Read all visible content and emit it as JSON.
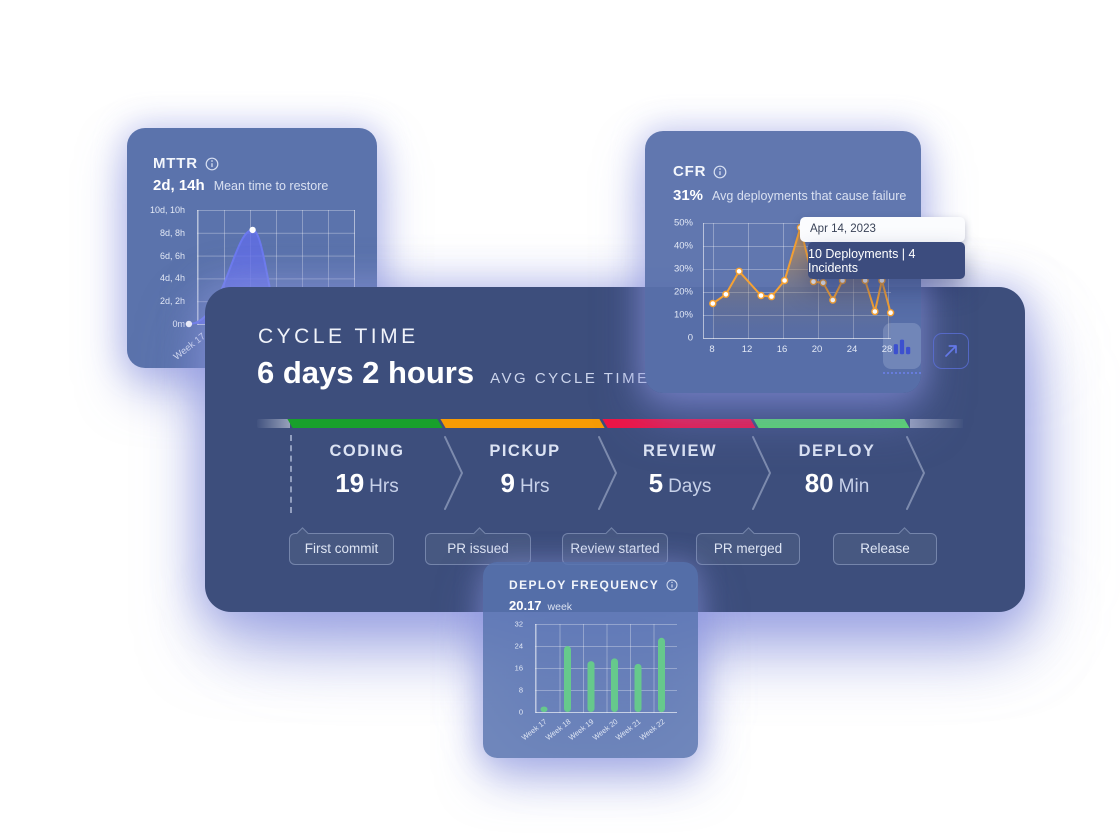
{
  "colors": {
    "card_light_bg": "#5b73ac",
    "cycle_card_bg": "#3d4e7c",
    "accent_orange": "#f6a233",
    "accent_periwinkle": "#6b79ef",
    "area_periwinkle_fill": "rgba(97,110,231,0.8)",
    "bar_green": "#66c98c",
    "segment_green": "#18a02b",
    "segment_orange": "#f79b04",
    "segment_red": "#ee1446",
    "segment_light_green": "#58d969",
    "glow": "#8d97e2"
  },
  "mttr_card": {
    "title": "MTTR",
    "value": "2d, 14h",
    "description": "Mean time to restore",
    "chart_data": {
      "type": "area",
      "y_tick_labels": [
        "10d, 10h",
        "8d, 8h",
        "6d, 6h",
        "4d, 4h",
        "2d, 2h",
        "0m"
      ],
      "x_tick_labels": [
        "Week 17"
      ],
      "ylim_days": [
        0,
        10.42
      ],
      "xlim_weeks": [
        0,
        6
      ],
      "curve_points_week_days": [
        [
          -0.35,
          0
        ],
        [
          2.1,
          8.6
        ],
        [
          3.3,
          0
        ],
        [
          6,
          0
        ]
      ],
      "dot_points": [
        [
          -0.35,
          0
        ],
        [
          2.1,
          8.6
        ]
      ]
    }
  },
  "cfr_card": {
    "title": "CFR",
    "value": "31%",
    "description": "Avg deployments that cause failure",
    "tooltip": {
      "date": "Apr 14, 2023",
      "text": "10 Deployments | 4 Incidents"
    },
    "chart_data": {
      "type": "line",
      "y_tick_labels": [
        "50%",
        "40%",
        "30%",
        "20%",
        "10%",
        "0"
      ],
      "x_tick_labels": [
        "8",
        "12",
        "16",
        "20",
        "24",
        "28"
      ],
      "ylim_percent": [
        0,
        50
      ],
      "xlim": [
        7,
        28.34
      ],
      "points": [
        [
          8,
          15
        ],
        [
          9.5,
          19
        ],
        [
          11,
          29
        ],
        [
          13.5,
          18.5
        ],
        [
          14.7,
          18
        ],
        [
          16.2,
          25
        ],
        [
          18,
          48
        ],
        [
          19.5,
          24.5
        ],
        [
          20.6,
          24
        ],
        [
          21.7,
          16.5
        ],
        [
          22.8,
          25
        ],
        [
          24.3,
          29
        ],
        [
          25.4,
          25
        ],
        [
          26.5,
          11.5
        ],
        [
          27.3,
          25
        ],
        [
          28.3,
          11
        ]
      ]
    }
  },
  "cycle_card": {
    "title": "CYCLE TIME",
    "value": "6 days 2 hours",
    "value_caption": "AVG CYCLE TIME",
    "stages": [
      {
        "label": "CODING",
        "value": "19",
        "unit": "Hrs"
      },
      {
        "label": "PICKUP",
        "value": "9",
        "unit": "Hrs"
      },
      {
        "label": "REVIEW",
        "value": "5",
        "unit": "Days"
      },
      {
        "label": "DEPLOY",
        "value": "80",
        "unit": "Min"
      }
    ],
    "milestones": [
      "First commit",
      "PR issued",
      "Review started",
      "PR merged",
      "Release"
    ]
  },
  "deploy_card": {
    "title": "DEPLOY FREQUENCY",
    "value": "20.17",
    "unit": "week",
    "chart_data": {
      "type": "bar",
      "categories": [
        "Week 17",
        "Week 18",
        "Week 19",
        "Week 20",
        "Week 21",
        "Week 22"
      ],
      "values": [
        2,
        24,
        18.5,
        19.5,
        17.5,
        27
      ],
      "ylim": [
        0,
        32
      ],
      "y_tick_labels": [
        "32",
        "24",
        "16",
        "8",
        "0"
      ]
    }
  }
}
